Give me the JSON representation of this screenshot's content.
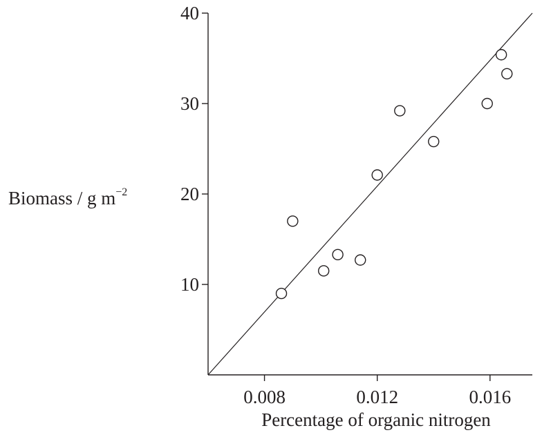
{
  "chart_data": {
    "type": "scatter",
    "title": "",
    "xlabel": "Percentage of organic nitrogen",
    "ylabel_main": "Biomass / g m",
    "ylabel_superscript": "−2",
    "xlim": [
      0.006,
      0.0175
    ],
    "ylim": [
      0,
      40
    ],
    "xticks": [
      0.008,
      0.012,
      0.016
    ],
    "xtick_labels": [
      "0.008",
      "0.012",
      "0.016"
    ],
    "yticks": [
      10,
      20,
      30,
      40
    ],
    "ytick_labels": [
      "10",
      "20",
      "30",
      "40"
    ],
    "grid": false,
    "legend": "none",
    "marker": "open-circle",
    "color": "#231f20",
    "series": [
      {
        "points": [
          {
            "x": 0.0086,
            "y": 9.0
          },
          {
            "x": 0.009,
            "y": 17.0
          },
          {
            "x": 0.0101,
            "y": 11.5
          },
          {
            "x": 0.0106,
            "y": 13.3
          },
          {
            "x": 0.0114,
            "y": 12.7
          },
          {
            "x": 0.012,
            "y": 22.1
          },
          {
            "x": 0.0128,
            "y": 29.2
          },
          {
            "x": 0.014,
            "y": 25.8
          },
          {
            "x": 0.0159,
            "y": 30.0
          },
          {
            "x": 0.0164,
            "y": 35.4
          },
          {
            "x": 0.0166,
            "y": 33.3
          }
        ]
      }
    ],
    "trend_line": {
      "x_start": 0.006,
      "y_start": 0,
      "x_end": 0.0175,
      "y_end": 40
    }
  }
}
